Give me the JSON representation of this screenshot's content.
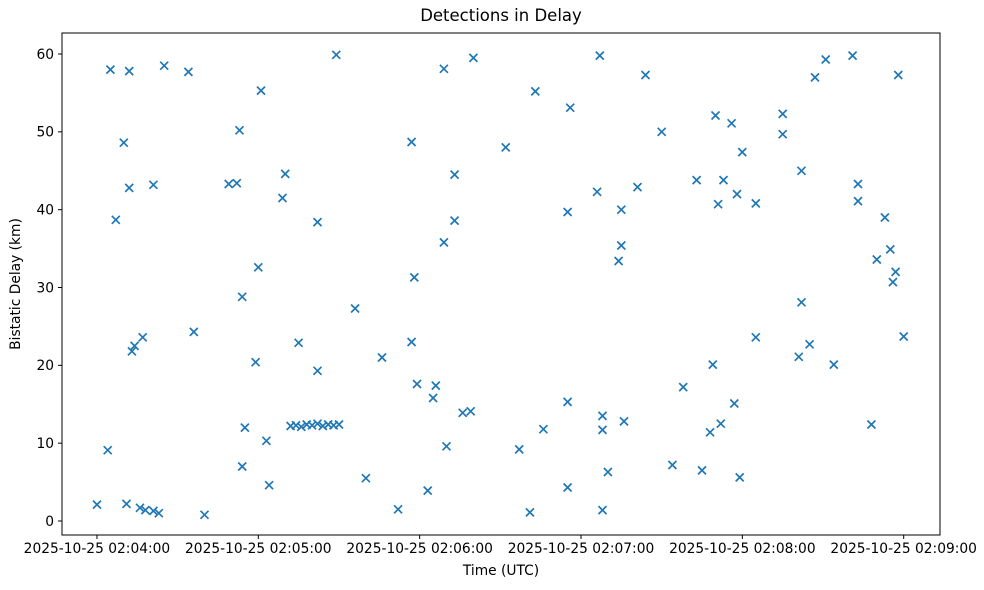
{
  "chart_data": {
    "type": "scatter",
    "title": "Detections in Delay",
    "xlabel": "Time (UTC)",
    "ylabel": "Bistatic Delay (km)",
    "legend": false,
    "grid": false,
    "marker": "x",
    "marker_color": "#1f77b4",
    "axis_color": "#000000",
    "background_color": "#ffffff",
    "x_tick_labels": [
      "2025-10-25 02:04:00",
      "2025-10-25 02:05:00",
      "2025-10-25 02:06:00",
      "2025-10-25 02:07:00",
      "2025-10-25 02:08:00",
      "2025-10-25 02:09:00"
    ],
    "x_tick_seconds": [
      0,
      60,
      120,
      180,
      240,
      300
    ],
    "y_ticks": [
      0,
      10,
      20,
      30,
      40,
      50,
      60
    ],
    "xlim_seconds": [
      -13,
      313.5
    ],
    "ylim": [
      -1.8,
      62.7
    ],
    "points_t_unit": "seconds after 2025-10-25 02:04:00 UTC",
    "points": [
      [
        5,
        58.0
      ],
      [
        12,
        57.8
      ],
      [
        25,
        58.5
      ],
      [
        34,
        57.7
      ],
      [
        89,
        59.9
      ],
      [
        61,
        55.3
      ],
      [
        53,
        50.2
      ],
      [
        10,
        48.6
      ],
      [
        70,
        44.6
      ],
      [
        12,
        42.8
      ],
      [
        21,
        43.2
      ],
      [
        49,
        43.3
      ],
      [
        52,
        43.4
      ],
      [
        69,
        41.5
      ],
      [
        7,
        38.7
      ],
      [
        82,
        38.4
      ],
      [
        60,
        32.6
      ],
      [
        54,
        28.8
      ],
      [
        96,
        27.3
      ],
      [
        36,
        24.3
      ],
      [
        17,
        23.6
      ],
      [
        14,
        22.5
      ],
      [
        13,
        21.8
      ],
      [
        75,
        22.9
      ],
      [
        59,
        20.4
      ],
      [
        82,
        19.3
      ],
      [
        72,
        12.2
      ],
      [
        74,
        12.3
      ],
      [
        76,
        12.1
      ],
      [
        78,
        12.4
      ],
      [
        80,
        12.3
      ],
      [
        82,
        12.5
      ],
      [
        84,
        12.2
      ],
      [
        86,
        12.4
      ],
      [
        88,
        12.3
      ],
      [
        90,
        12.4
      ],
      [
        55,
        12.0
      ],
      [
        63,
        10.3
      ],
      [
        4,
        9.1
      ],
      [
        54,
        7.0
      ],
      [
        64,
        4.6
      ],
      [
        0,
        2.1
      ],
      [
        11,
        2.2
      ],
      [
        16,
        1.7
      ],
      [
        18,
        1.4
      ],
      [
        21,
        1.3
      ],
      [
        23,
        1.0
      ],
      [
        40,
        0.8
      ],
      [
        140,
        59.5
      ],
      [
        129,
        58.1
      ],
      [
        187,
        59.8
      ],
      [
        204,
        57.3
      ],
      [
        163,
        55.2
      ],
      [
        176,
        53.1
      ],
      [
        117,
        48.7
      ],
      [
        152,
        48.0
      ],
      [
        133,
        44.5
      ],
      [
        186,
        42.3
      ],
      [
        201,
        42.9
      ],
      [
        175,
        39.7
      ],
      [
        195,
        40.0
      ],
      [
        133,
        38.6
      ],
      [
        129,
        35.8
      ],
      [
        195,
        35.4
      ],
      [
        194,
        33.4
      ],
      [
        118,
        31.3
      ],
      [
        117,
        23.0
      ],
      [
        106,
        21.0
      ],
      [
        119,
        17.6
      ],
      [
        126,
        17.4
      ],
      [
        125,
        15.8
      ],
      [
        136,
        13.9
      ],
      [
        139,
        14.1
      ],
      [
        175,
        15.3
      ],
      [
        166,
        11.8
      ],
      [
        188,
        13.5
      ],
      [
        196,
        12.8
      ],
      [
        188,
        11.7
      ],
      [
        130,
        9.6
      ],
      [
        157,
        9.2
      ],
      [
        100,
        5.5
      ],
      [
        123,
        3.9
      ],
      [
        112,
        1.5
      ],
      [
        161,
        1.1
      ],
      [
        175,
        4.3
      ],
      [
        190,
        6.3
      ],
      [
        188,
        1.4
      ],
      [
        271,
        59.3
      ],
      [
        281,
        59.8
      ],
      [
        267,
        57.0
      ],
      [
        298,
        57.3
      ],
      [
        230,
        52.1
      ],
      [
        236,
        51.1
      ],
      [
        255,
        52.3
      ],
      [
        210,
        50.0
      ],
      [
        255,
        49.7
      ],
      [
        240,
        47.4
      ],
      [
        262,
        45.0
      ],
      [
        223,
        43.8
      ],
      [
        233,
        43.8
      ],
      [
        238,
        42.0
      ],
      [
        231,
        40.7
      ],
      [
        245,
        40.8
      ],
      [
        283,
        43.3
      ],
      [
        283,
        41.1
      ],
      [
        293,
        39.0
      ],
      [
        295,
        34.9
      ],
      [
        290,
        33.6
      ],
      [
        297,
        32.0
      ],
      [
        296,
        30.7
      ],
      [
        262,
        28.1
      ],
      [
        245,
        23.6
      ],
      [
        265,
        22.7
      ],
      [
        261,
        21.1
      ],
      [
        274,
        20.1
      ],
      [
        229,
        20.1
      ],
      [
        218,
        17.2
      ],
      [
        237,
        15.1
      ],
      [
        232,
        12.5
      ],
      [
        228,
        11.4
      ],
      [
        288,
        12.4
      ],
      [
        214,
        7.2
      ],
      [
        225,
        6.5
      ],
      [
        239,
        5.6
      ],
      [
        300,
        23.7
      ]
    ]
  }
}
